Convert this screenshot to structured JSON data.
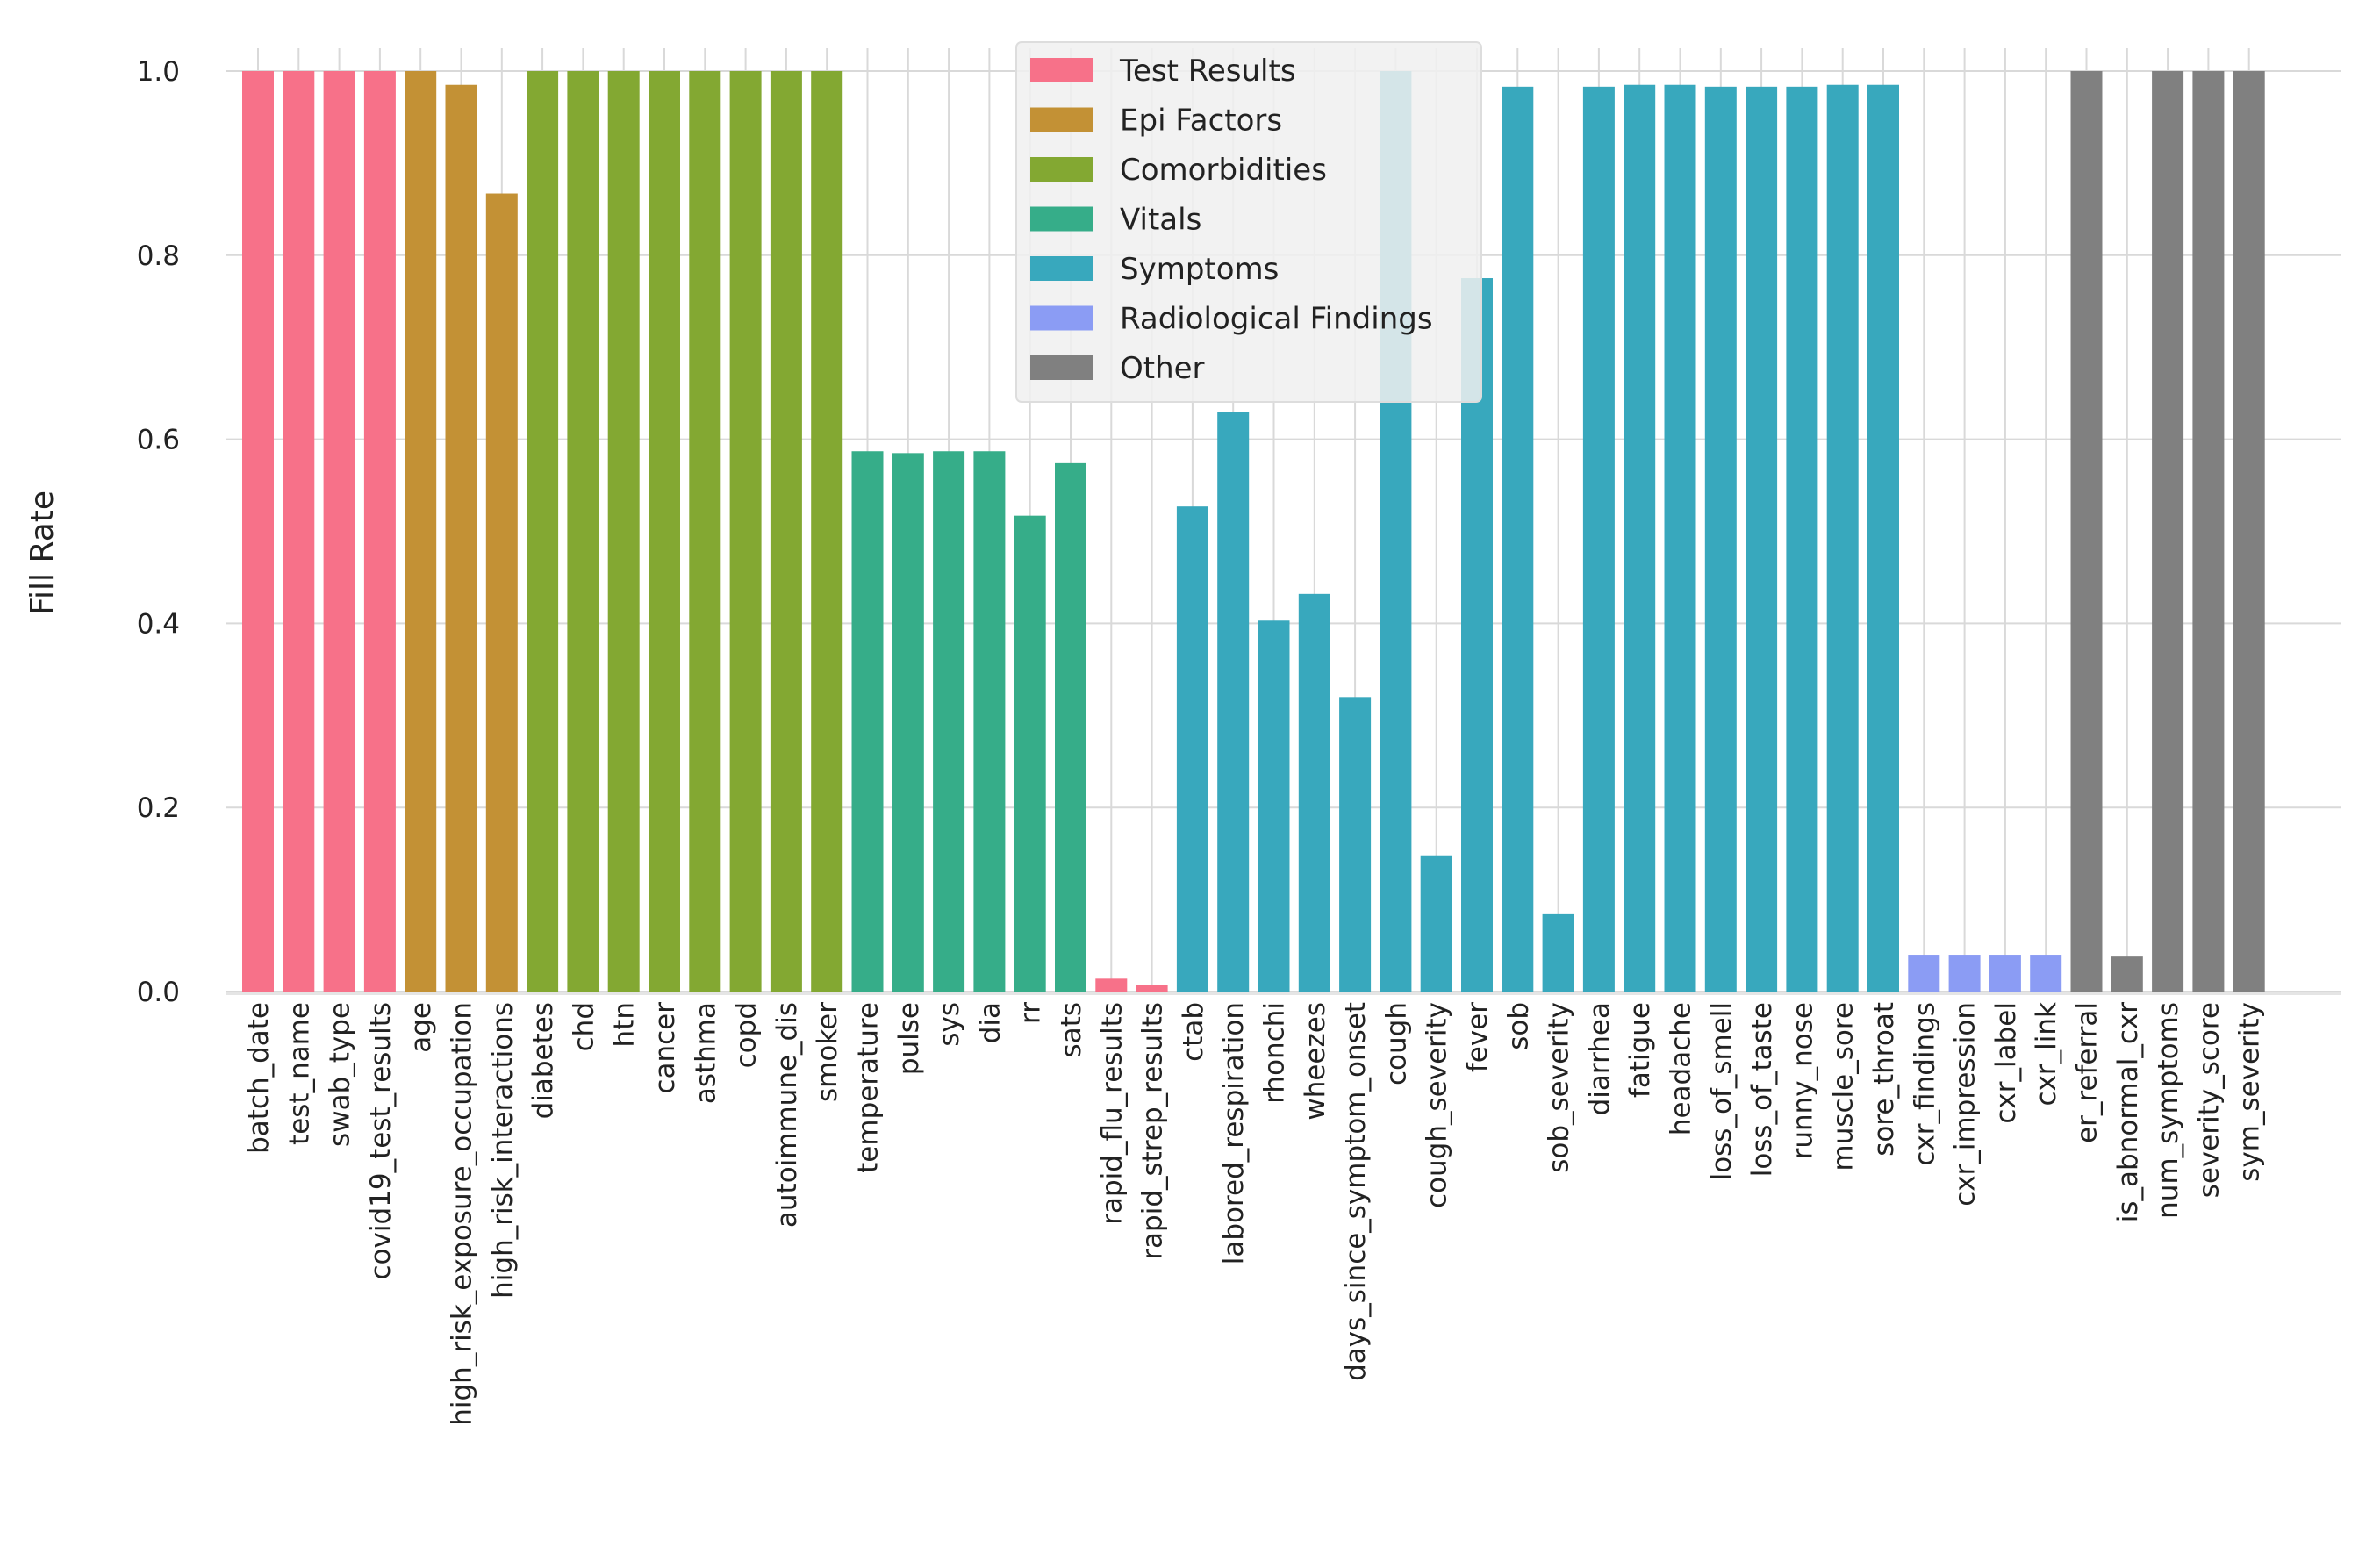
{
  "chart_data": {
    "type": "bar",
    "title": "",
    "xlabel": "",
    "ylabel": "Fill Rate",
    "ylim": [
      0,
      1.0
    ],
    "yticks": [
      "0.0",
      "0.2",
      "0.4",
      "0.6",
      "0.8",
      "1.0"
    ],
    "ytick_values": [
      0,
      0.2,
      0.4,
      0.6,
      0.8,
      1.0
    ],
    "grid": true,
    "legend_position": "top-center",
    "groups": [
      {
        "name": "Test Results",
        "color": "#f77189"
      },
      {
        "name": "Epi Factors",
        "color": "#c39135"
      },
      {
        "name": "Comorbidities",
        "color": "#83a832"
      },
      {
        "name": "Vitals",
        "color": "#36ad89"
      },
      {
        "name": "Symptoms",
        "color": "#38a8bd"
      },
      {
        "name": "Radiological Findings",
        "color": "#8b9cf4"
      },
      {
        "name": "Other",
        "color": "#808080"
      }
    ],
    "categories": [
      "batch_date",
      "test_name",
      "swab_type",
      "covid19_test_results",
      "age",
      "high_risk_exposure_occupation",
      "high_risk_interactions",
      "diabetes",
      "chd",
      "htn",
      "cancer",
      "asthma",
      "copd",
      "autoimmune_dis",
      "smoker",
      "temperature",
      "pulse",
      "sys",
      "dia",
      "rr",
      "sats",
      "rapid_flu_results",
      "rapid_strep_results",
      "ctab",
      "labored_respiration",
      "rhonchi",
      "wheezes",
      "days_since_symptom_onset",
      "cough",
      "cough_severity",
      "fever",
      "sob",
      "sob_severity",
      "diarrhea",
      "fatigue",
      "headache",
      "loss_of_smell",
      "loss_of_taste",
      "runny_nose",
      "muscle_sore",
      "sore_throat",
      "cxr_findings",
      "cxr_impression",
      "cxr_label",
      "cxr_link",
      "er_referral",
      "is_abnormal_cxr",
      "num_symptoms",
      "severity_score",
      "sym_severity"
    ],
    "values": [
      1.0,
      1.0,
      1.0,
      1.0,
      1.0,
      0.985,
      0.867,
      1.0,
      1.0,
      1.0,
      1.0,
      1.0,
      1.0,
      1.0,
      1.0,
      0.587,
      0.585,
      0.587,
      0.587,
      0.517,
      0.574,
      0.014,
      0.007,
      0.527,
      0.63,
      0.403,
      0.432,
      0.32,
      1.0,
      0.148,
      0.775,
      0.983,
      0.084,
      0.983,
      0.985,
      0.985,
      0.983,
      0.983,
      0.983,
      0.985,
      0.985,
      0.04,
      0.04,
      0.04,
      0.04,
      1.0,
      0.038,
      1.0,
      1.0,
      1.0
    ],
    "bar_groups": [
      0,
      0,
      0,
      0,
      1,
      1,
      1,
      2,
      2,
      2,
      2,
      2,
      2,
      2,
      2,
      3,
      3,
      3,
      3,
      3,
      3,
      0,
      0,
      4,
      4,
      4,
      4,
      4,
      4,
      4,
      4,
      4,
      4,
      4,
      4,
      4,
      4,
      4,
      4,
      4,
      4,
      5,
      5,
      5,
      5,
      6,
      6,
      6,
      6,
      6
    ]
  }
}
